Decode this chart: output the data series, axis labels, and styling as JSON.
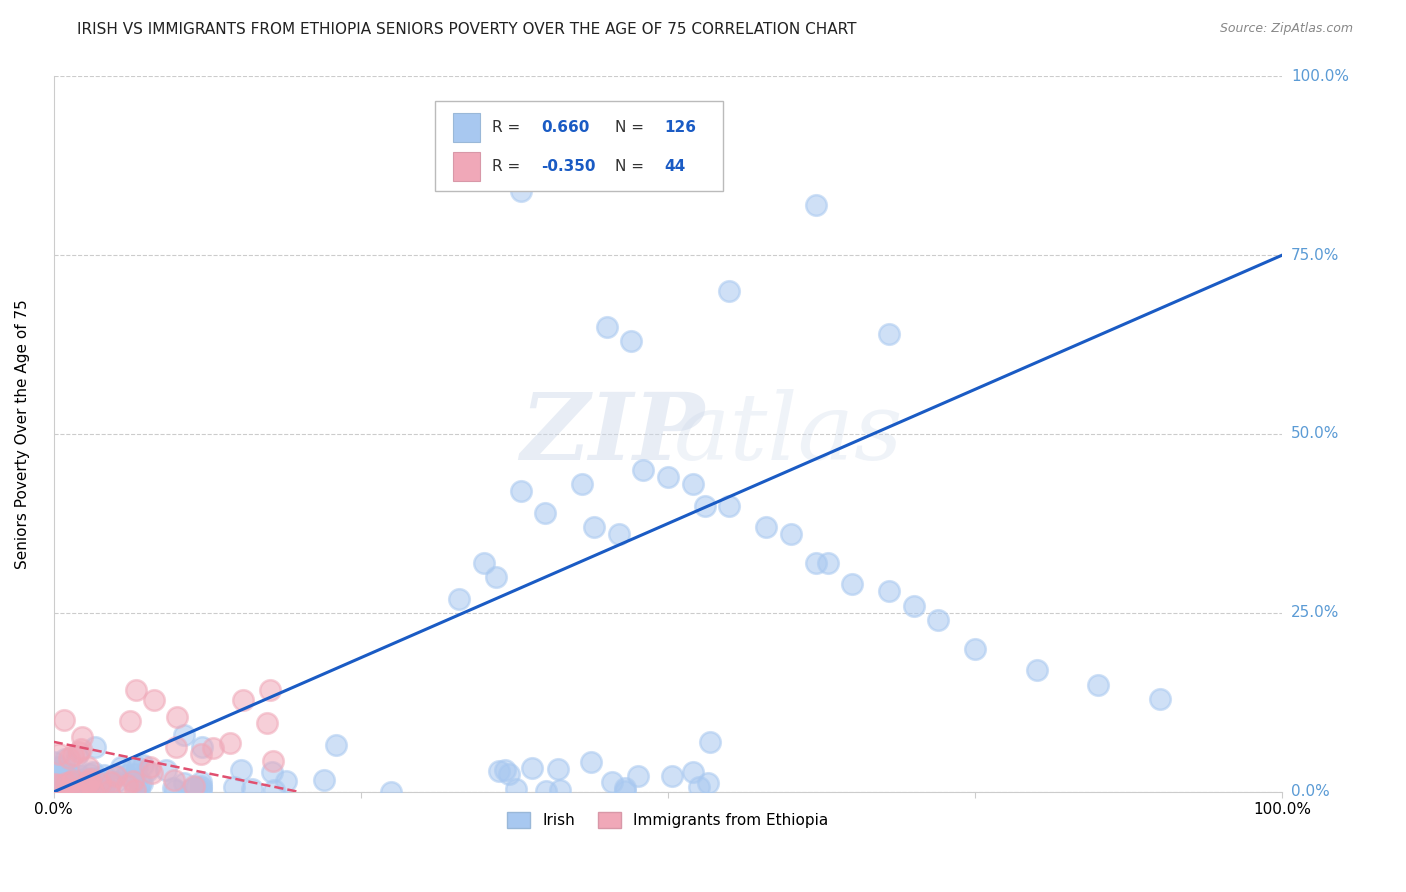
{
  "title": "IRISH VS IMMIGRANTS FROM ETHIOPIA SENIORS POVERTY OVER THE AGE OF 75 CORRELATION CHART",
  "source": "Source: ZipAtlas.com",
  "ylabel": "Seniors Poverty Over the Age of 75",
  "irish_R": 0.66,
  "irish_N": 126,
  "ethiopia_R": -0.35,
  "ethiopia_N": 44,
  "irish_color": "#a8c8f0",
  "ethiopia_color": "#f0a8b8",
  "irish_line_color": "#1a5bc4",
  "ethiopia_line_color": "#e05070",
  "watermark_zip": "ZIP",
  "watermark_atlas": "atlas",
  "background_color": "#ffffff",
  "grid_color": "#cccccc",
  "title_fontsize": 11,
  "tick_label_color_right": "#5b9bd5",
  "xlim": [
    0,
    1.0
  ],
  "ylim": [
    0,
    1.0
  ],
  "xtick_labels": [
    "0.0%",
    "",
    "",
    "",
    "100.0%"
  ],
  "ytick_labels_right": [
    "0.0%",
    "25.0%",
    "50.0%",
    "75.0%",
    "100.0%"
  ],
  "irish_line_x": [
    0.0,
    1.0
  ],
  "irish_line_y": [
    0.0,
    0.75
  ],
  "ethiopia_line_x": [
    0.0,
    0.2
  ],
  "ethiopia_line_y": [
    0.07,
    -0.005
  ]
}
